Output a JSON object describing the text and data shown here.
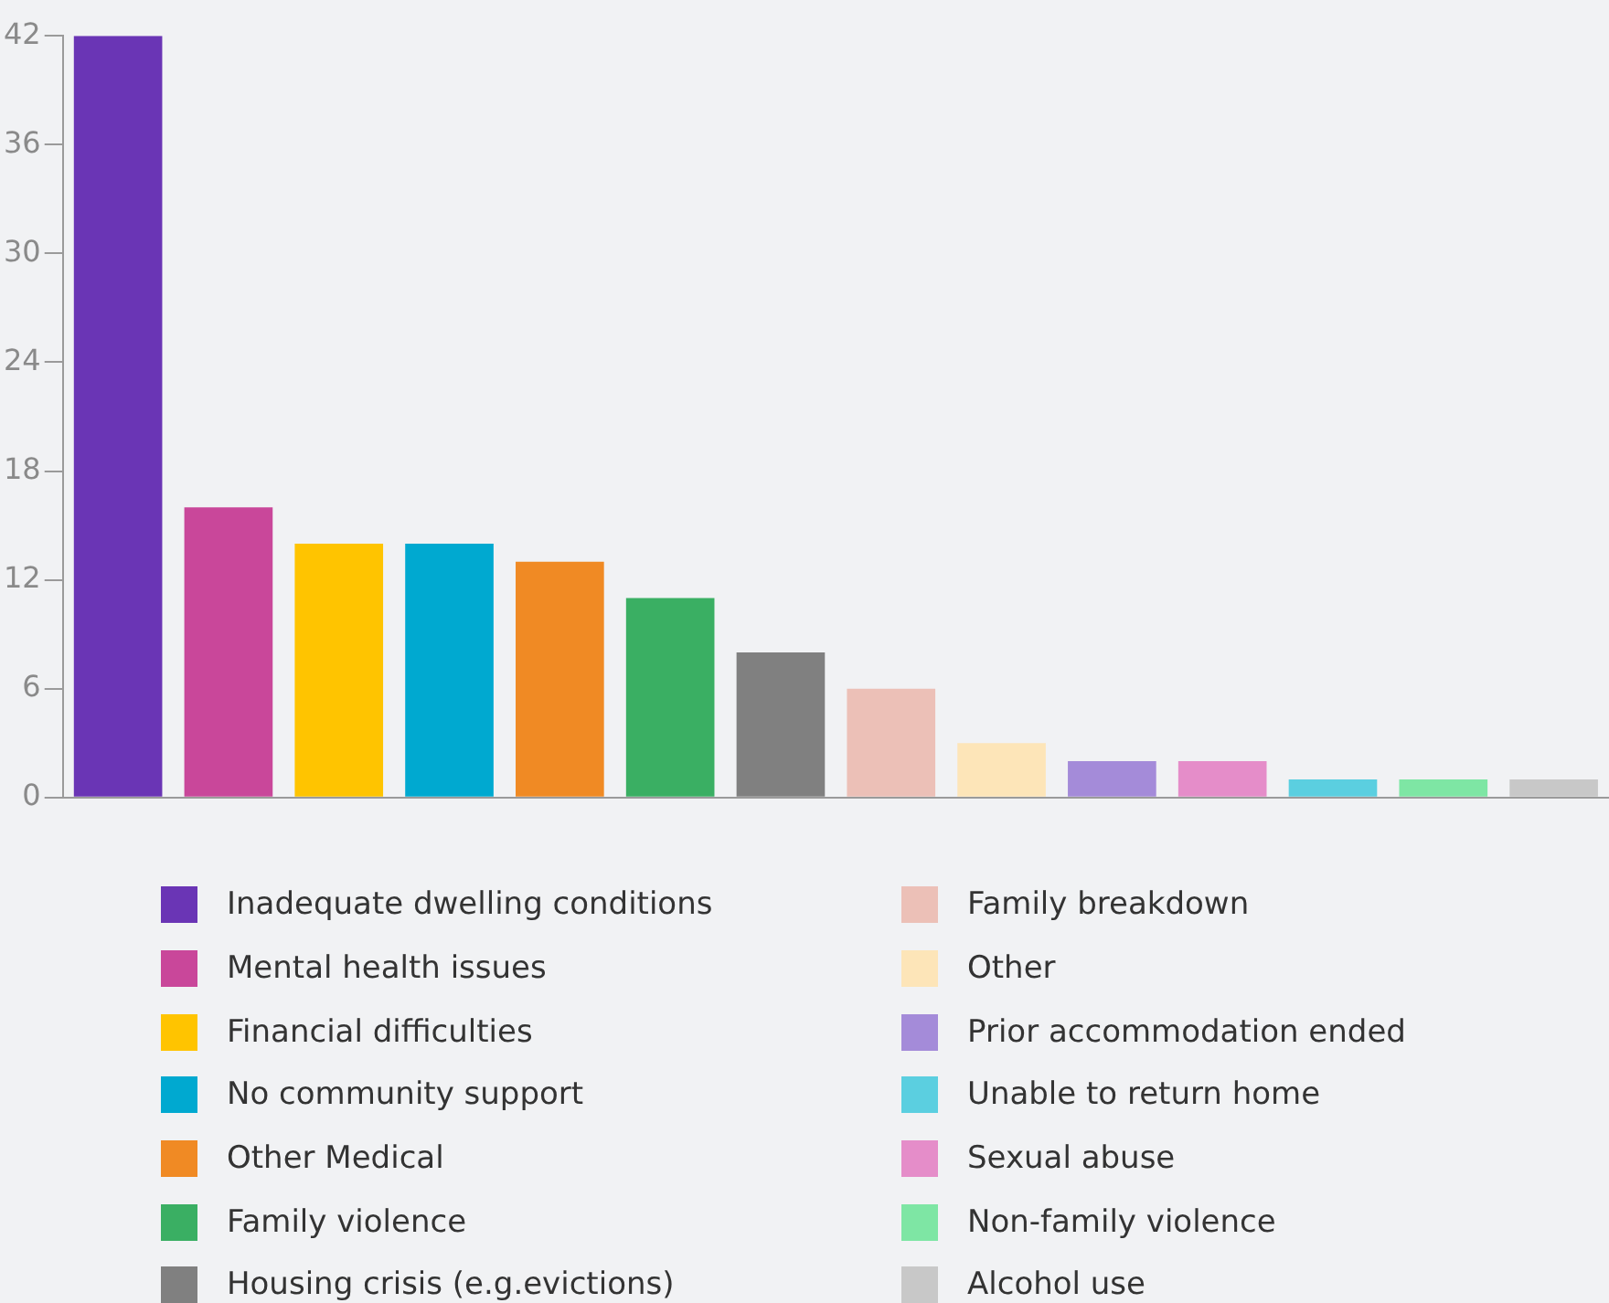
{
  "chart_data": {
    "type": "bar",
    "categories": [
      null,
      null,
      null,
      null,
      null,
      null,
      null,
      null,
      null,
      null,
      null,
      null,
      null,
      null
    ],
    "series": [
      {
        "name": "Inadequate dwelling conditions",
        "color": "#6a35b5",
        "values": [
          42,
          null,
          null,
          null,
          null,
          null,
          null,
          null,
          null,
          null,
          null,
          null,
          null,
          null
        ]
      },
      {
        "name": "Mental health issues",
        "color": "#c9479a",
        "values": [
          null,
          16,
          null,
          null,
          null,
          null,
          null,
          null,
          null,
          null,
          null,
          null,
          null,
          null
        ]
      },
      {
        "name": "Financial difficulties",
        "color": "#ffc400",
        "values": [
          null,
          null,
          14,
          null,
          null,
          null,
          null,
          null,
          null,
          null,
          null,
          null,
          null,
          null
        ]
      },
      {
        "name": "No community support",
        "color": "#00a9d0",
        "values": [
          null,
          null,
          null,
          14,
          null,
          null,
          null,
          null,
          null,
          null,
          null,
          null,
          null,
          null
        ]
      },
      {
        "name": "Other Medical",
        "color": "#f08a24",
        "values": [
          null,
          null,
          null,
          null,
          13,
          null,
          null,
          null,
          null,
          null,
          null,
          null,
          null,
          null
        ]
      },
      {
        "name": "Family violence",
        "color": "#3aaf63",
        "values": [
          null,
          null,
          null,
          null,
          null,
          11,
          null,
          null,
          null,
          null,
          null,
          null,
          null,
          null
        ]
      },
      {
        "name": "Housing crisis (e.g.evictions)",
        "color": "#808080",
        "values": [
          null,
          null,
          null,
          null,
          null,
          null,
          8,
          null,
          null,
          null,
          null,
          null,
          null,
          null
        ]
      },
      {
        "name": "Family breakdown",
        "color": "#ecc0b7",
        "values": [
          null,
          null,
          null,
          null,
          null,
          null,
          null,
          6,
          null,
          null,
          null,
          null,
          null,
          null
        ]
      },
      {
        "name": "Other",
        "color": "#fde5b8",
        "values": [
          null,
          null,
          null,
          null,
          null,
          null,
          null,
          null,
          3,
          null,
          null,
          null,
          null,
          null
        ]
      },
      {
        "name": "Prior accommodation ended",
        "color": "#a48bd9",
        "values": [
          null,
          null,
          null,
          null,
          null,
          null,
          null,
          null,
          null,
          2,
          null,
          null,
          null,
          null
        ]
      },
      {
        "name": "Unable to return home",
        "color": "#5bcfe0",
        "values": [
          null,
          null,
          null,
          null,
          null,
          null,
          null,
          null,
          null,
          null,
          null,
          1,
          null,
          null
        ]
      },
      {
        "name": "Sexual abuse",
        "color": "#e58dc9",
        "values": [
          null,
          null,
          null,
          null,
          null,
          null,
          null,
          null,
          null,
          null,
          2,
          null,
          null,
          null
        ]
      },
      {
        "name": "Non-family violence",
        "color": "#7ee6a4",
        "values": [
          null,
          null,
          null,
          null,
          null,
          null,
          null,
          null,
          null,
          null,
          null,
          null,
          1,
          null
        ]
      },
      {
        "name": "Alcohol use",
        "color": "#c8c8c8",
        "values": [
          null,
          null,
          null,
          null,
          null,
          null,
          null,
          null,
          null,
          null,
          null,
          null,
          null,
          1
        ]
      }
    ],
    "ylim": [
      0,
      42
    ],
    "yticks": [
      0,
      6,
      12,
      18,
      24,
      30,
      36,
      42
    ],
    "grid": false,
    "legend": "bottom",
    "tick_labels": "y"
  }
}
